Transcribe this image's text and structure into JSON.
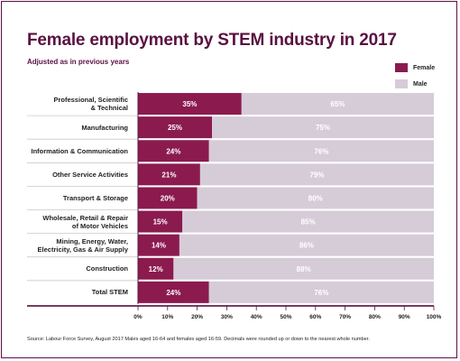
{
  "title": "Female employment by STEM industry in 2017",
  "subtitle": "Adjusted as in previous years",
  "source": "Source: Labour Force Survey, August 2017  Males aged 16-64 and females aged 16-59. Decimals were rounded up or down to the nearest whole number.",
  "colors": {
    "female": "#8b1a4f",
    "male": "#d6ccd8",
    "axis": "#5a1140",
    "frame": "#5a1140"
  },
  "chart_data": {
    "type": "bar",
    "orientation": "horizontal",
    "stacked": true,
    "title": "Female employment by STEM industry in 2017",
    "subtitle": "Adjusted as in previous years",
    "legend_position": "top-right",
    "categories": [
      [
        "Professional, Scientific",
        "& Technical"
      ],
      [
        "Manufacturing"
      ],
      [
        "Information & Communication"
      ],
      [
        "Other Service Activities"
      ],
      [
        "Transport & Storage"
      ],
      [
        "Wholesale, Retail & Repair",
        "of Motor Vehicles"
      ],
      [
        "Mining, Energy, Water,",
        "Electricity, Gas & Air Supply"
      ],
      [
        "Construction"
      ],
      [
        "Total STEM"
      ]
    ],
    "series": [
      {
        "name": "Female",
        "values": [
          35,
          25,
          24,
          21,
          20,
          15,
          14,
          12,
          24
        ],
        "labels": [
          "35%",
          "25%",
          "24%",
          "21%",
          "20%",
          "15%",
          "14%",
          "12%",
          "24%"
        ]
      },
      {
        "name": "Male",
        "values": [
          65,
          75,
          76,
          79,
          80,
          85,
          86,
          88,
          76
        ],
        "labels": [
          "65%",
          "75%",
          "76%",
          "79%",
          "80%",
          "85%",
          "86%",
          "88%",
          "76%"
        ]
      }
    ],
    "xlim": [
      0,
      100
    ],
    "xticks": [
      "0%",
      "10%",
      "20%",
      "30%",
      "40%",
      "50%",
      "60%",
      "70%",
      "80%",
      "90%",
      "100%"
    ],
    "grid": false
  }
}
